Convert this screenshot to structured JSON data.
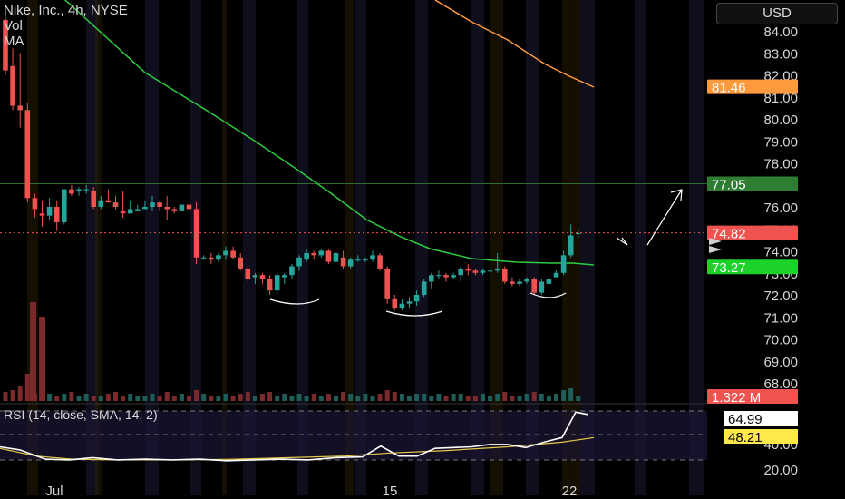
{
  "legend": {
    "title": "Nike, Inc., 4h, NYSE",
    "vol": "Vol",
    "ma": "MA"
  },
  "currency": "USD",
  "rsi_legend": "RSI (14, close, SMA, 14, 2)",
  "colors": {
    "up": "#26a69a",
    "down": "#ef5350",
    "ma_fast": "#2ecc40",
    "ma_slow": "#ff9a3c",
    "rsi": "#ffffff",
    "rsi_ma": "#e6c84a"
  },
  "chart_data": {
    "type": "candlestick",
    "price_axis": {
      "ticks": [
        "84.00",
        "83.00",
        "82.00",
        "81.00",
        "80.00",
        "79.00",
        "78.00",
        "77.00",
        "76.00",
        "75.00",
        "74.00",
        "73.00",
        "72.00",
        "71.00",
        "70.00",
        "69.00",
        "68.00"
      ],
      "range": [
        67.3,
        85.0
      ]
    },
    "time_axis": {
      "labels": [
        "Jul",
        "15",
        "22"
      ]
    },
    "price_labels": [
      {
        "text": "81.46",
        "value": 81.46,
        "color": "#ff9a3c"
      },
      {
        "text": "77.05",
        "value": 77.05,
        "color": "#2e7d32"
      },
      {
        "text": "74.82",
        "value": 74.82,
        "color": "#ef5350"
      },
      {
        "text": "73.27",
        "value": 73.27,
        "color": "#1bd12a"
      },
      {
        "text": "1.322 M",
        "color": "#ef5350"
      }
    ],
    "horizontal_level": 77.05,
    "current_price": 74.82,
    "candles": [
      [
        84.5,
        84.8,
        82.0,
        82.2
      ],
      [
        82.4,
        83.2,
        80.4,
        80.6
      ],
      [
        80.6,
        83.0,
        79.6,
        80.4
      ],
      [
        80.4,
        80.7,
        76.2,
        76.4
      ],
      [
        76.4,
        76.6,
        75.5,
        75.9
      ],
      [
        75.7,
        76.3,
        75.1,
        75.6
      ],
      [
        75.6,
        76.4,
        75.4,
        76.0
      ],
      [
        76.0,
        76.3,
        74.9,
        75.3
      ],
      [
        75.3,
        76.8,
        75.2,
        76.8
      ],
      [
        76.8,
        77.0,
        76.5,
        76.6
      ],
      [
        76.7,
        76.9,
        76.5,
        76.8
      ],
      [
        76.8,
        77.0,
        76.6,
        76.8
      ],
      [
        76.7,
        76.9,
        75.9,
        76.0
      ],
      [
        76.0,
        76.5,
        75.9,
        76.3
      ],
      [
        76.3,
        76.8,
        76.2,
        76.2
      ],
      [
        76.2,
        76.5,
        75.9,
        76.0
      ],
      [
        75.8,
        76.7,
        75.5,
        75.7
      ],
      [
        75.7,
        76.3,
        75.7,
        75.9
      ],
      [
        75.8,
        76.1,
        75.8,
        75.9
      ],
      [
        75.9,
        76.3,
        75.9,
        76.0
      ],
      [
        76.0,
        76.5,
        75.8,
        76.2
      ],
      [
        76.2,
        76.3,
        75.8,
        76.0
      ],
      [
        76.0,
        76.5,
        75.4,
        75.9
      ],
      [
        75.9,
        76.0,
        75.7,
        75.8
      ],
      [
        75.8,
        76.1,
        75.8,
        76.1
      ],
      [
        76.1,
        76.2,
        75.9,
        75.9
      ],
      [
        75.9,
        76.2,
        73.4,
        73.7
      ],
      [
        73.7,
        73.8,
        73.6,
        73.7
      ],
      [
        73.7,
        73.9,
        73.4,
        73.6
      ],
      [
        73.6,
        73.9,
        73.5,
        73.8
      ],
      [
        73.8,
        74.2,
        73.6,
        74.0
      ],
      [
        74.0,
        74.2,
        73.6,
        73.7
      ],
      [
        73.7,
        73.9,
        73.1,
        73.2
      ],
      [
        73.2,
        73.3,
        72.6,
        72.7
      ],
      [
        72.8,
        73.0,
        72.5,
        72.9
      ],
      [
        72.9,
        73.0,
        72.5,
        72.7
      ],
      [
        72.7,
        72.9,
        72.0,
        72.2
      ],
      [
        72.2,
        73.0,
        72.0,
        72.9
      ],
      [
        72.8,
        73.0,
        72.5,
        72.9
      ],
      [
        72.9,
        73.4,
        72.7,
        73.3
      ],
      [
        73.3,
        73.8,
        73.1,
        73.7
      ],
      [
        73.6,
        74.1,
        73.5,
        73.9
      ],
      [
        73.9,
        74.0,
        73.6,
        73.8
      ],
      [
        73.8,
        74.1,
        73.7,
        74.0
      ],
      [
        74.0,
        74.1,
        73.4,
        73.5
      ],
      [
        73.5,
        73.9,
        73.5,
        73.9
      ],
      [
        73.7,
        74.0,
        73.2,
        73.3
      ],
      [
        73.3,
        73.7,
        73.2,
        73.6
      ],
      [
        73.6,
        73.8,
        73.5,
        73.6
      ],
      [
        73.6,
        73.7,
        73.5,
        73.6
      ],
      [
        73.6,
        74.0,
        73.5,
        73.8
      ],
      [
        73.8,
        73.9,
        73.1,
        73.2
      ],
      [
        73.2,
        73.3,
        71.6,
        71.8
      ],
      [
        71.8,
        72.0,
        71.3,
        71.4
      ],
      [
        71.4,
        71.8,
        71.3,
        71.6
      ],
      [
        71.6,
        71.9,
        71.4,
        71.7
      ],
      [
        71.7,
        72.2,
        71.5,
        72.0
      ],
      [
        72.0,
        72.7,
        71.9,
        72.6
      ],
      [
        72.6,
        73.0,
        72.3,
        72.9
      ],
      [
        72.9,
        73.1,
        72.7,
        72.9
      ],
      [
        72.9,
        73.0,
        72.6,
        72.8
      ],
      [
        72.8,
        73.0,
        72.7,
        72.9
      ],
      [
        72.9,
        73.3,
        72.6,
        73.2
      ],
      [
        73.2,
        73.4,
        72.9,
        73.1
      ],
      [
        73.1,
        73.2,
        72.9,
        73.0
      ],
      [
        73.0,
        73.2,
        72.9,
        73.1
      ],
      [
        73.1,
        73.3,
        73.0,
        73.1
      ],
      [
        73.1,
        73.9,
        73.0,
        73.2
      ],
      [
        73.2,
        73.3,
        72.5,
        72.6
      ],
      [
        72.6,
        72.8,
        72.4,
        72.5
      ],
      [
        72.5,
        72.7,
        72.4,
        72.6
      ],
      [
        72.6,
        72.8,
        72.5,
        72.7
      ],
      [
        72.7,
        72.8,
        72.0,
        72.1
      ],
      [
        72.1,
        72.7,
        72.0,
        72.6
      ],
      [
        72.5,
        72.7,
        72.5,
        72.7
      ],
      [
        72.8,
        73.1,
        72.8,
        73.0
      ],
      [
        73.0,
        74.0,
        72.9,
        73.8
      ],
      [
        73.8,
        75.2,
        73.7,
        74.7
      ],
      [
        74.8,
        75.0,
        74.6,
        74.8
      ]
    ],
    "ma_fast": [
      [
        50,
        -20
      ],
      [
        160,
        80
      ],
      [
        230,
        123
      ],
      [
        282,
        156
      ],
      [
        325,
        185
      ],
      [
        365,
        213
      ],
      [
        404,
        242
      ],
      [
        442,
        261
      ],
      [
        474,
        274
      ],
      [
        520,
        285
      ],
      [
        570,
        289
      ],
      [
        610,
        290
      ],
      [
        632,
        290
      ],
      [
        655,
        292
      ]
    ],
    "ma_slow": [
      [
        480,
        0
      ],
      [
        520,
        24
      ],
      [
        560,
        44
      ],
      [
        600,
        70
      ],
      [
        628,
        84
      ],
      [
        655,
        96
      ]
    ],
    "volume": [
      10,
      12,
      16,
      30,
      8,
      10,
      8,
      6,
      8,
      10,
      6,
      8,
      6,
      6,
      8,
      10,
      6,
      8,
      6,
      6,
      8,
      6,
      10,
      6,
      8,
      6,
      12,
      8,
      6,
      6,
      8,
      6,
      8,
      10,
      6,
      8,
      10,
      6,
      8,
      6,
      8,
      6,
      8,
      6,
      8,
      6,
      10,
      8,
      6,
      8,
      6,
      8,
      12,
      10,
      8,
      6,
      8,
      8,
      6,
      8,
      6,
      8,
      8,
      6,
      6,
      8,
      6,
      8,
      10,
      6,
      6,
      8,
      10,
      8,
      6,
      8,
      12,
      14,
      6
    ],
    "rsi_axis": {
      "ticks": [
        "60.00",
        "40.00",
        "20.00"
      ],
      "levels": [
        70,
        50,
        30
      ]
    },
    "rsi_labels": [
      {
        "text": "64.99",
        "color": "#ffffff"
      },
      {
        "text": "48.21",
        "color": "#ffe94a"
      }
    ],
    "rsi": [
      [
        0,
        30
      ],
      [
        22,
        26
      ],
      [
        50,
        14
      ],
      [
        76,
        13
      ],
      [
        102,
        16
      ],
      [
        130,
        13
      ],
      [
        160,
        14
      ],
      [
        190,
        13
      ],
      [
        220,
        14
      ],
      [
        250,
        12
      ],
      [
        280,
        13
      ],
      [
        310,
        14
      ],
      [
        340,
        13
      ],
      [
        370,
        16
      ],
      [
        400,
        17
      ],
      [
        420,
        31
      ],
      [
        440,
        18
      ],
      [
        460,
        18
      ],
      [
        480,
        28
      ],
      [
        500,
        29
      ],
      [
        520,
        30
      ],
      [
        540,
        33
      ],
      [
        560,
        33
      ],
      [
        580,
        29
      ],
      [
        600,
        36
      ],
      [
        620,
        42
      ],
      [
        635,
        75
      ],
      [
        648,
        72
      ]
    ],
    "rsi_ma": [
      [
        0,
        28
      ],
      [
        40,
        18
      ],
      [
        80,
        14
      ],
      [
        130,
        13
      ],
      [
        200,
        13
      ],
      [
        260,
        14
      ],
      [
        320,
        16
      ],
      [
        380,
        18
      ],
      [
        430,
        22
      ],
      [
        490,
        25
      ],
      [
        560,
        30
      ],
      [
        620,
        36
      ],
      [
        655,
        42
      ]
    ]
  }
}
